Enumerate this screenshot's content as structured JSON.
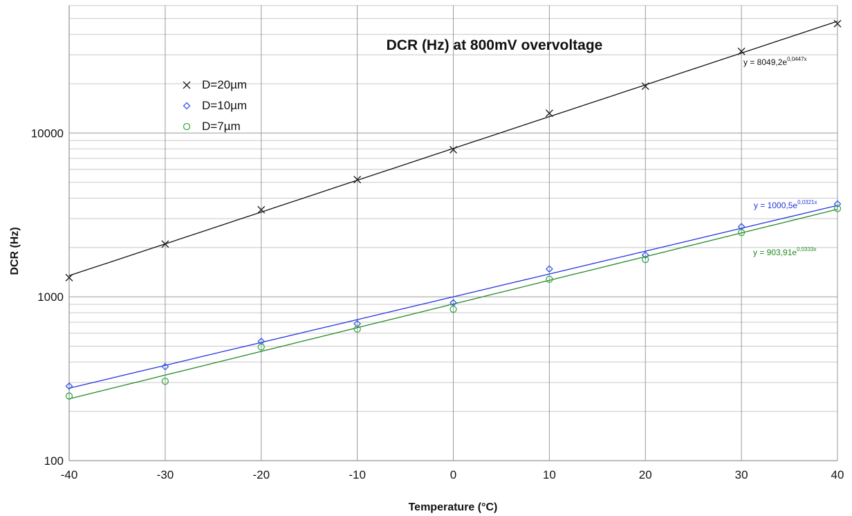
{
  "chart_data": {
    "type": "scatter",
    "title": "DCR (Hz) at 800mV overvoltage",
    "xlabel": "Temperature (°C)",
    "ylabel": "DCR (Hz)",
    "xlim": [
      -40,
      40
    ],
    "ylim": [
      100,
      60000
    ],
    "yscale": "log",
    "x_ticks": [
      "-40",
      "-30",
      "-20",
      "-10",
      "0",
      "10",
      "20",
      "30",
      "40"
    ],
    "y_ticks": [
      "100",
      "1000",
      "10000"
    ],
    "grid": true,
    "legend_position": "top-left",
    "x": [
      -40,
      -30,
      -20,
      -10,
      0,
      10,
      20,
      30,
      40
    ],
    "series": [
      {
        "name": "D=20µm",
        "marker": "x",
        "color": "#222222",
        "values": [
          1310,
          2100,
          3400,
          5200,
          7900,
          13200,
          19300,
          31500,
          46500
        ],
        "trendline": {
          "a": 8049.2,
          "b": 0.0447,
          "label_main": "y = 8049,2e",
          "label_exp": "0,0447x",
          "color": "#111111"
        }
      },
      {
        "name": "D=10µm",
        "marker": "diamond",
        "color": "#3355ee",
        "values": [
          285,
          375,
          535,
          685,
          920,
          1480,
          1800,
          2680,
          3690
        ],
        "trendline": {
          "a": 1000.5,
          "b": 0.0321,
          "label_main": "y = 1000,5e",
          "label_exp": "0,0321x",
          "color": "#2233dd"
        }
      },
      {
        "name": "D=7µm",
        "marker": "circle",
        "color": "#33aa44",
        "values": [
          248,
          305,
          495,
          635,
          840,
          1280,
          1690,
          2470,
          3460
        ],
        "trendline": {
          "a": 903.91,
          "b": 0.0333,
          "label_main": "y = 903,91e",
          "label_exp": "0,0333x",
          "color": "#228822"
        }
      }
    ]
  }
}
